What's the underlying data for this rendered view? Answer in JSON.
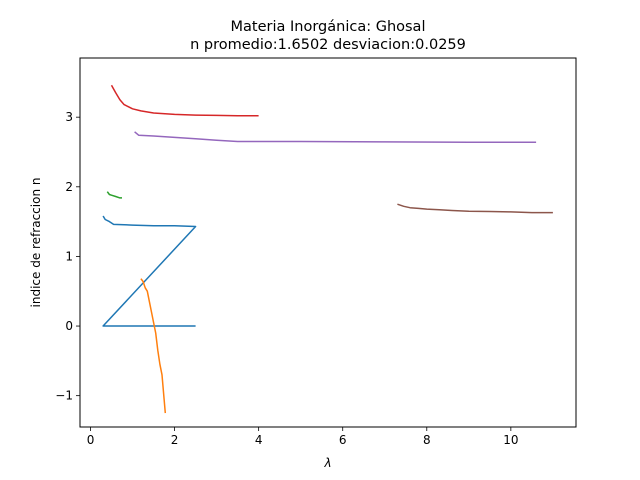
{
  "chart_data": {
    "type": "line",
    "title": "Materia Inorgánica: Ghosal",
    "subtitle": "n promedio:1.6502 desviacion:0.0259",
    "xlabel": "λ",
    "ylabel": "indice de refraccion n",
    "xlim": [
      -0.25,
      11.55
    ],
    "ylim": [
      -1.45,
      3.85
    ],
    "xticks": [
      0,
      2,
      4,
      6,
      8,
      10
    ],
    "yticks": [
      -1,
      0,
      1,
      2,
      3
    ],
    "grid": false,
    "series": [
      {
        "color": "#1f77b4",
        "x": [
          0.3,
          0.35,
          0.45,
          0.55,
          1.0,
          1.5,
          2.0,
          2.5,
          0.3,
          2.5
        ],
        "y": [
          1.58,
          1.53,
          1.5,
          1.46,
          1.45,
          1.44,
          1.44,
          1.43,
          0.0,
          0.0
        ]
      },
      {
        "color": "#ff7f0e",
        "x": [
          1.2,
          1.25,
          1.3,
          1.35,
          1.4,
          1.45,
          1.5,
          1.55,
          1.6,
          1.65,
          1.7,
          1.75,
          1.78
        ],
        "y": [
          0.68,
          0.64,
          0.55,
          0.5,
          0.35,
          0.2,
          0.05,
          -0.1,
          -0.35,
          -0.55,
          -0.7,
          -1.05,
          -1.25
        ]
      },
      {
        "color": "#2ca02c",
        "x": [
          0.4,
          0.45,
          0.5,
          0.6,
          0.7,
          0.75
        ],
        "y": [
          1.93,
          1.89,
          1.88,
          1.86,
          1.84,
          1.84
        ]
      },
      {
        "color": "#d62728",
        "x": [
          0.5,
          0.6,
          0.7,
          0.8,
          0.9,
          1.0,
          1.2,
          1.5,
          2.0,
          2.5,
          3.0,
          3.5,
          4.0
        ],
        "y": [
          3.46,
          3.35,
          3.25,
          3.18,
          3.15,
          3.12,
          3.09,
          3.06,
          3.04,
          3.03,
          3.025,
          3.02,
          3.02
        ]
      },
      {
        "color": "#9467bd",
        "x": [
          1.05,
          1.15,
          1.5,
          2.0,
          2.5,
          3.0,
          3.5,
          5.0,
          7.0,
          9.0,
          10.6
        ],
        "y": [
          2.79,
          2.74,
          2.73,
          2.71,
          2.69,
          2.67,
          2.65,
          2.65,
          2.645,
          2.64,
          2.64
        ]
      },
      {
        "color": "#8c564b",
        "x": [
          7.3,
          7.45,
          7.6,
          7.8,
          8.0,
          8.3,
          8.6,
          9.0,
          9.5,
          10.0,
          10.5,
          10.8,
          11.0
        ],
        "y": [
          1.75,
          1.72,
          1.7,
          1.69,
          1.68,
          1.67,
          1.66,
          1.65,
          1.645,
          1.64,
          1.63,
          1.63,
          1.63
        ]
      }
    ]
  }
}
